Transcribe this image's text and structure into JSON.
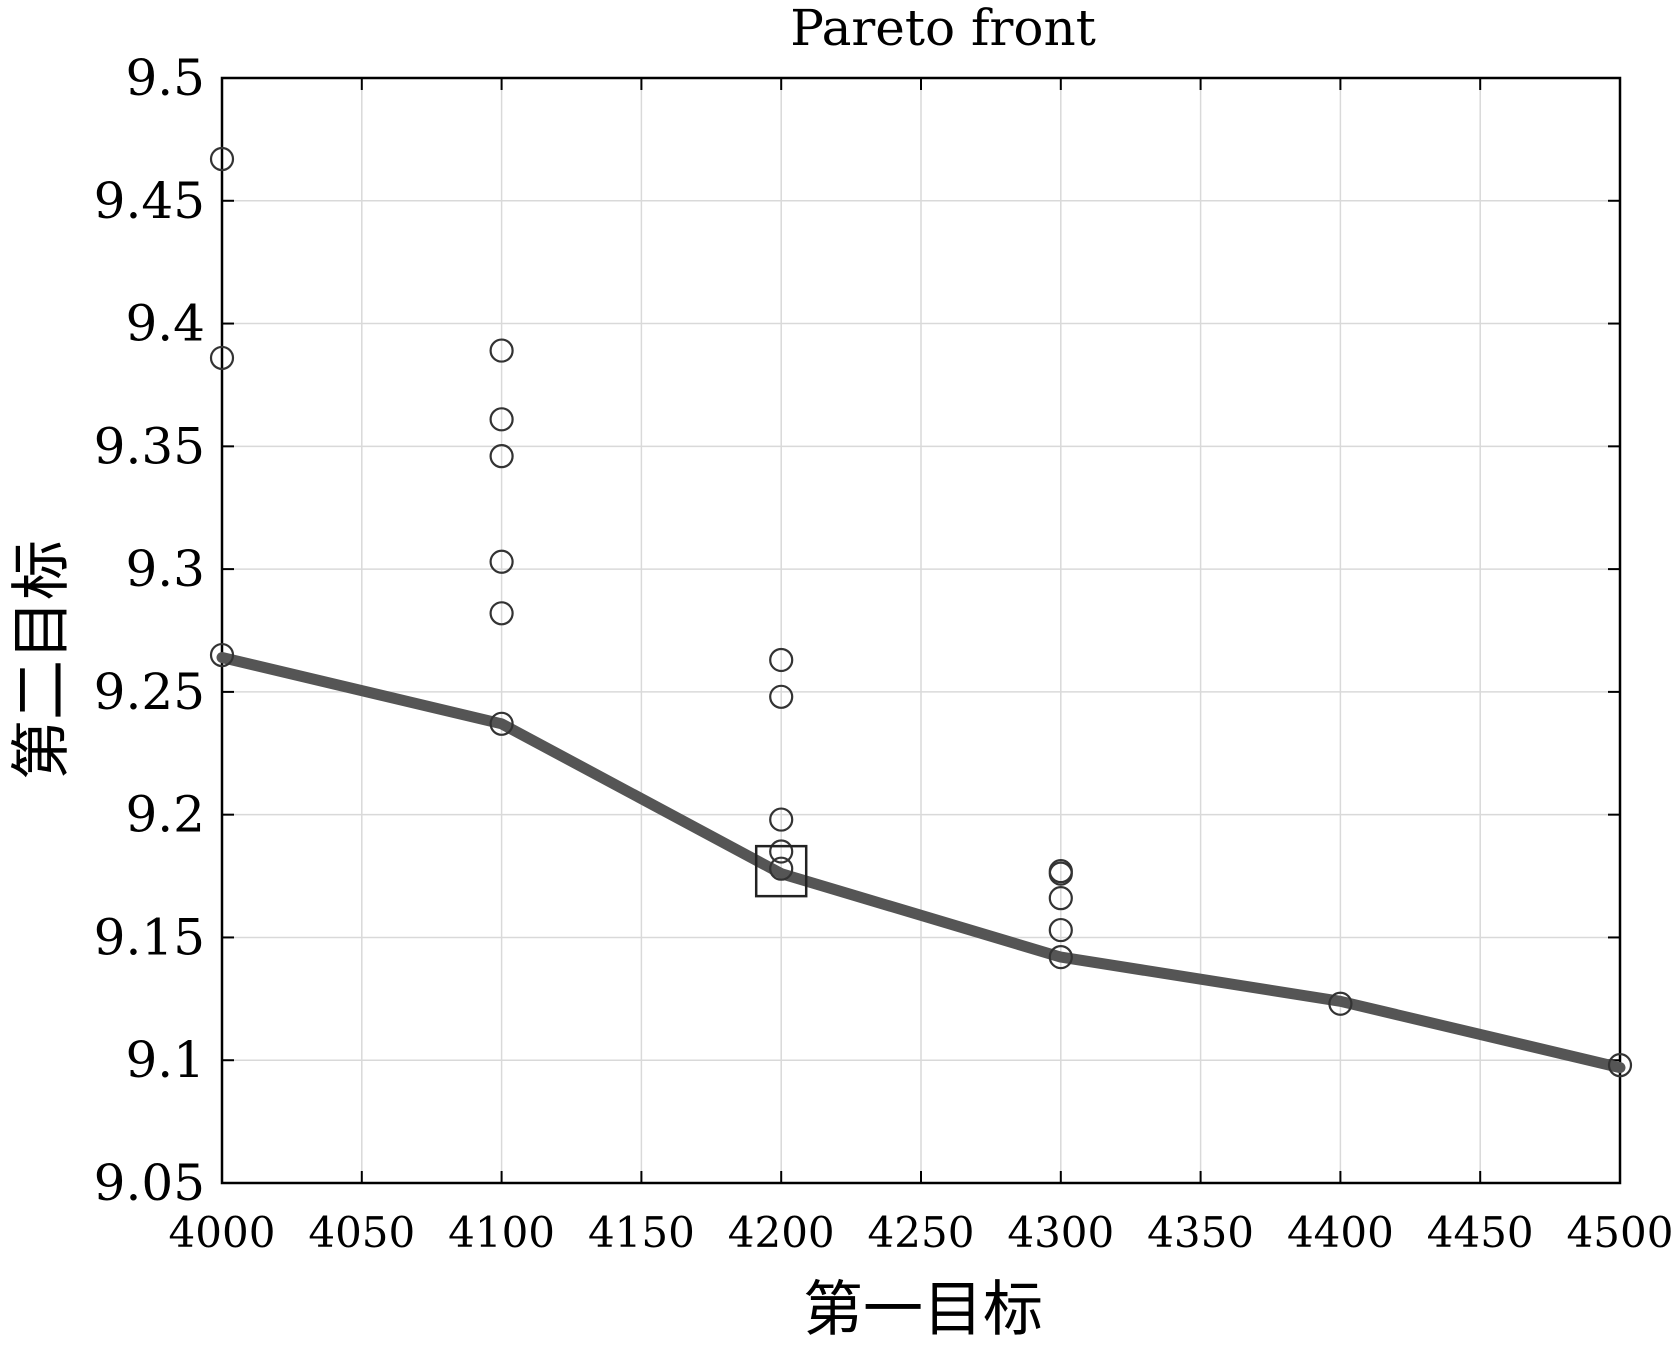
{
  "chart_data": {
    "type": "scatter",
    "title": "Pareto front",
    "xlabel": "第一目标",
    "ylabel": "第二目标",
    "xlim": [
      4000,
      4500
    ],
    "ylim": [
      9.05,
      9.5
    ],
    "grid": true,
    "x_ticks": [
      "4000",
      "4050",
      "4100",
      "4150",
      "4200",
      "4250",
      "4300",
      "4350",
      "4400",
      "4450",
      "4500"
    ],
    "y_ticks": [
      "9.05",
      "9.1",
      "9.15",
      "9.2",
      "9.25",
      "9.3",
      "9.35",
      "9.4",
      "9.45",
      "9.5"
    ],
    "series": [
      {
        "marker": "circle",
        "color": "#333333",
        "points": [
          [
            4000,
            9.467
          ],
          [
            4000,
            9.386
          ],
          [
            4000,
            9.265
          ],
          [
            4100,
            9.389
          ],
          [
            4100,
            9.361
          ],
          [
            4100,
            9.346
          ],
          [
            4100,
            9.303
          ],
          [
            4100,
            9.282
          ],
          [
            4100,
            9.237
          ],
          [
            4200,
            9.263
          ],
          [
            4200,
            9.248
          ],
          [
            4200,
            9.198
          ],
          [
            4200,
            9.185
          ],
          [
            4200,
            9.178
          ],
          [
            4300,
            9.177
          ],
          [
            4300,
            9.176
          ],
          [
            4300,
            9.166
          ],
          [
            4300,
            9.153
          ],
          [
            4300,
            9.142
          ],
          [
            4400,
            9.123
          ],
          [
            4500,
            9.098
          ]
        ]
      },
      {
        "type": "line",
        "color": "#555555",
        "points": [
          [
            4000,
            9.264
          ],
          [
            4100,
            9.237
          ],
          [
            4200,
            9.176
          ],
          [
            4300,
            9.142
          ],
          [
            4400,
            9.124
          ],
          [
            4500,
            9.097
          ]
        ]
      }
    ],
    "highlight": {
      "marker": "square",
      "x": 4200,
      "y": 9.177
    }
  }
}
